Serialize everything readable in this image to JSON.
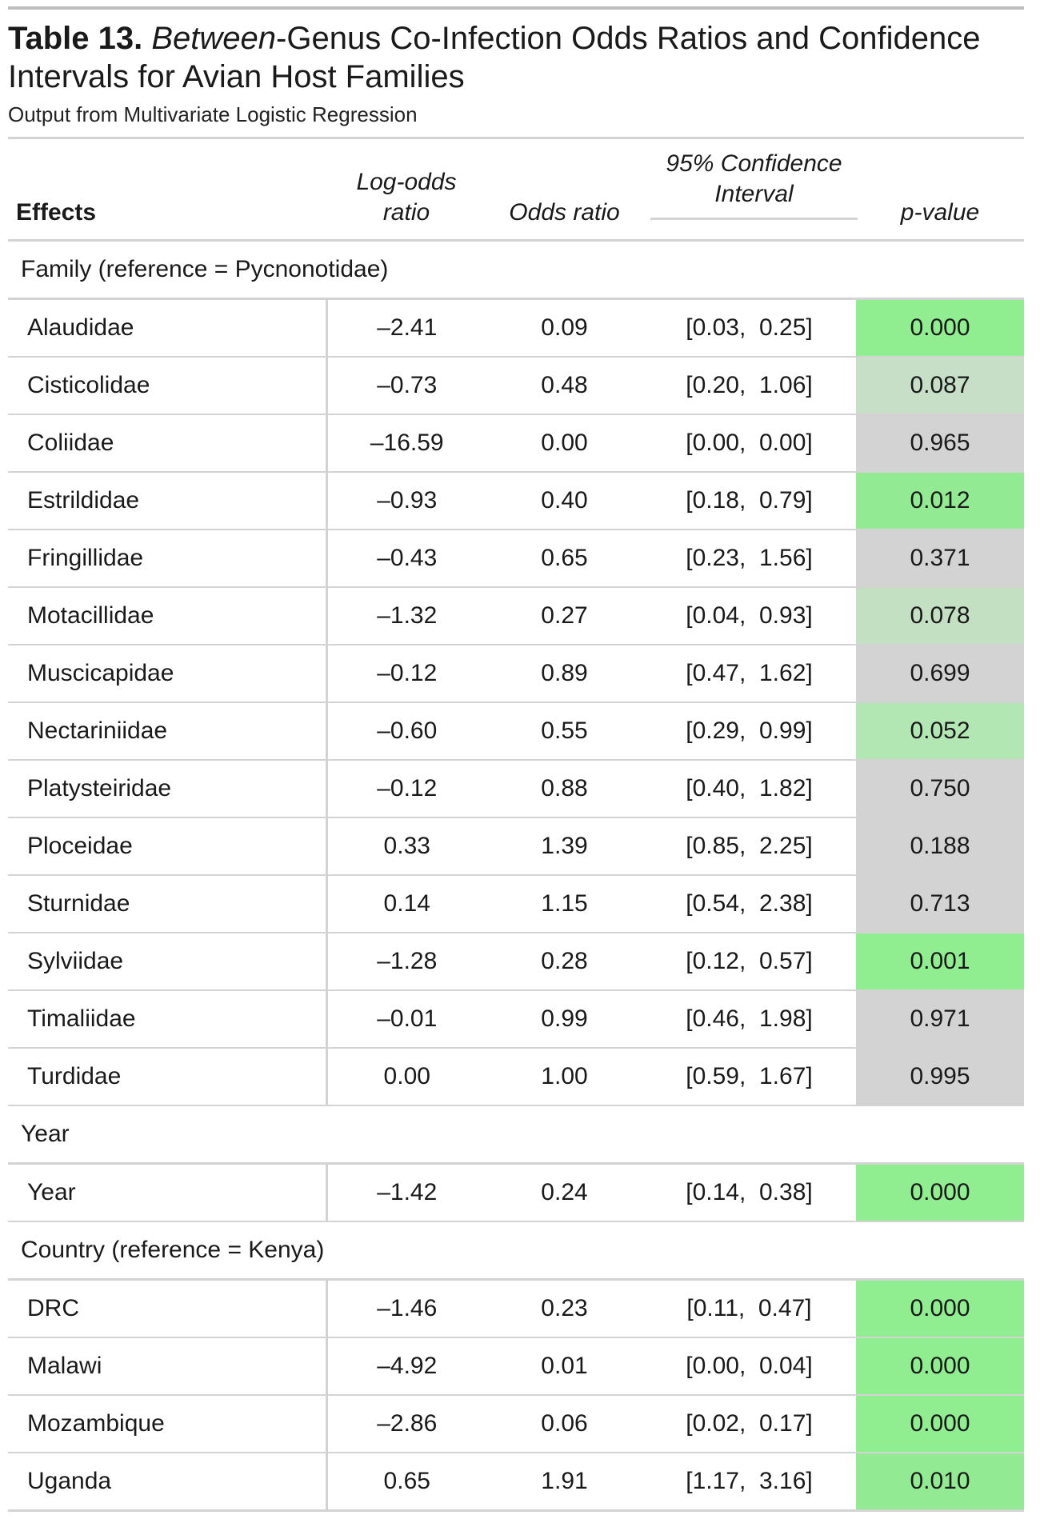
{
  "table": {
    "title_bold": "Table 13.",
    "title_italic": "Between",
    "title_rest": "-Genus Co-Infection Odds Ratios and Confidence Intervals for Avian Host Families",
    "subtitle": "Output from Multivariate Logistic Regression",
    "headers": {
      "effects": "Effects",
      "log_odds_line1": "Log-odds",
      "log_odds_line2": "ratio",
      "odds_ratio": "Odds ratio",
      "ci": "95% Confidence Interval",
      "p_value": "p-value"
    },
    "groups": [
      {
        "label": "Family (reference = Pycnonotidae)",
        "rows": [
          {
            "effect": "Alaudidae",
            "log_odds": "–2.41",
            "odds": "0.09",
            "ci": "[0.03,  0.25]",
            "p": "0.000",
            "p_color": "#90ee90"
          },
          {
            "effect": "Cisticolidae",
            "log_odds": "–0.73",
            "odds": "0.48",
            "ci": "[0.20,  1.06]",
            "p": "0.087",
            "p_color": "#c6dfc6"
          },
          {
            "effect": "Coliidae",
            "log_odds": "–16.59",
            "odds": "0.00",
            "ci": "[0.00,  0.00]",
            "p": "0.965",
            "p_color": "#d3d3d3"
          },
          {
            "effect": "Estrildidae",
            "log_odds": "–0.93",
            "odds": "0.40",
            "ci": "[0.18,  0.79]",
            "p": "0.012",
            "p_color": "#92eb92"
          },
          {
            "effect": "Fringillidae",
            "log_odds": "–0.43",
            "odds": "0.65",
            "ci": "[0.23,  1.56]",
            "p": "0.371",
            "p_color": "#d3d3d3"
          },
          {
            "effect": "Motacillidae",
            "log_odds": "–1.32",
            "odds": "0.27",
            "ci": "[0.04,  0.93]",
            "p": "0.078",
            "p_color": "#c3e0c3"
          },
          {
            "effect": "Muscicapidae",
            "log_odds": "–0.12",
            "odds": "0.89",
            "ci": "[0.47,  1.62]",
            "p": "0.699",
            "p_color": "#d3d3d3"
          },
          {
            "effect": "Nectariniidae",
            "log_odds": "–0.60",
            "odds": "0.55",
            "ci": "[0.29,  0.99]",
            "p": "0.052",
            "p_color": "#b2e6b2"
          },
          {
            "effect": "Platysteiridae",
            "log_odds": "–0.12",
            "odds": "0.88",
            "ci": "[0.40,  1.82]",
            "p": "0.750",
            "p_color": "#d3d3d3"
          },
          {
            "effect": "Ploceidae",
            "log_odds": "0.33",
            "odds": "1.39",
            "ci": "[0.85,  2.25]",
            "p": "0.188",
            "p_color": "#d3d3d3"
          },
          {
            "effect": "Sturnidae",
            "log_odds": "0.14",
            "odds": "1.15",
            "ci": "[0.54,  2.38]",
            "p": "0.713",
            "p_color": "#d3d3d3"
          },
          {
            "effect": "Sylviidae",
            "log_odds": "–1.28",
            "odds": "0.28",
            "ci": "[0.12,  0.57]",
            "p": "0.001",
            "p_color": "#90ee90"
          },
          {
            "effect": "Timaliidae",
            "log_odds": "–0.01",
            "odds": "0.99",
            "ci": "[0.46,  1.98]",
            "p": "0.971",
            "p_color": "#d3d3d3"
          },
          {
            "effect": "Turdidae",
            "log_odds": "0.00",
            "odds": "1.00",
            "ci": "[0.59,  1.67]",
            "p": "0.995",
            "p_color": "#d3d3d3"
          }
        ]
      },
      {
        "label": "Year",
        "rows": [
          {
            "effect": "Year",
            "log_odds": "–1.42",
            "odds": "0.24",
            "ci": "[0.14,  0.38]",
            "p": "0.000",
            "p_color": "#90ee90"
          }
        ]
      },
      {
        "label": "Country (reference = Kenya)",
        "rows": [
          {
            "effect": "DRC",
            "log_odds": "–1.46",
            "odds": "0.23",
            "ci": "[0.11,  0.47]",
            "p": "0.000",
            "p_color": "#90ee90"
          },
          {
            "effect": "Malawi",
            "log_odds": "–4.92",
            "odds": "0.01",
            "ci": "[0.00,  0.04]",
            "p": "0.000",
            "p_color": "#90ee90"
          },
          {
            "effect": "Mozambique",
            "log_odds": "–2.86",
            "odds": "0.06",
            "ci": "[0.02,  0.17]",
            "p": "0.000",
            "p_color": "#90ee90"
          },
          {
            "effect": "Uganda",
            "log_odds": "0.65",
            "odds": "1.91",
            "ci": "[1.17,  3.16]",
            "p": "0.010",
            "p_color": "#92eb92"
          }
        ]
      }
    ]
  }
}
